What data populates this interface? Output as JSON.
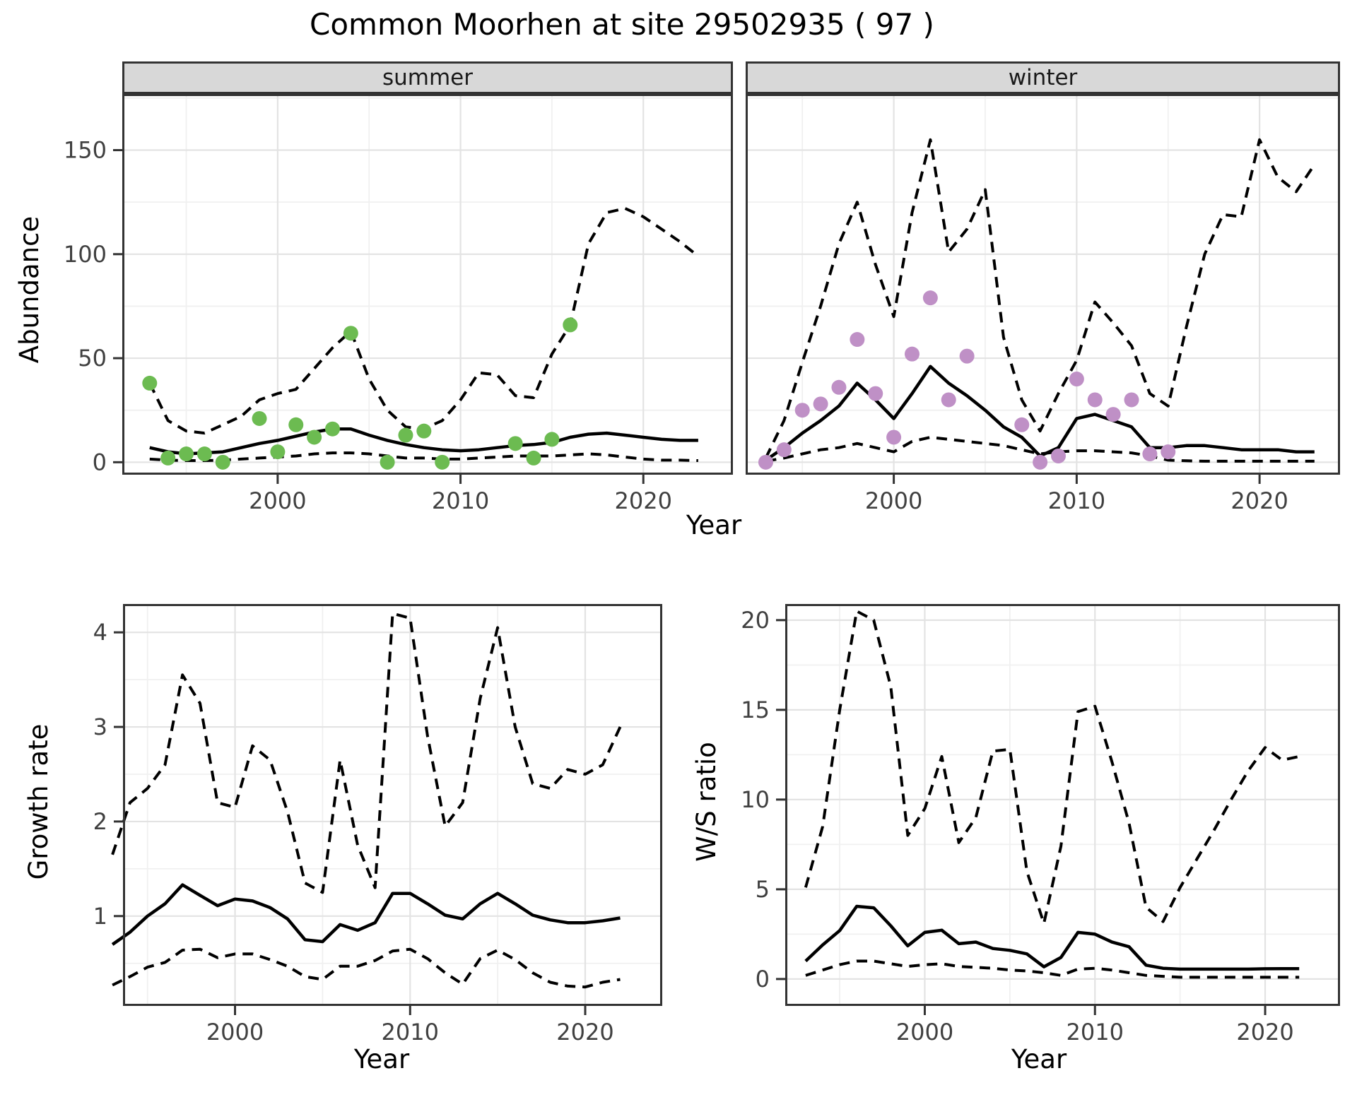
{
  "title": "Common Moorhen at site 29502935 ( 97 )",
  "axis_titles": {
    "abundance": "Abundance",
    "year_top": "Year",
    "year_growth": "Year",
    "year_ws": "Year",
    "growth_rate": "Growth rate",
    "ws_ratio": "W/S ratio"
  },
  "colors": {
    "summer_points": "#6cbb51",
    "winter_points": "#bf90c6",
    "line": "#000000",
    "grid_major": "#e3e3e3",
    "grid_minor": "#f0f0f0",
    "panel_border": "#333333",
    "strip_bg": "#d8d8d8",
    "tick_text": "#404040"
  },
  "chart_data": {
    "type": "line",
    "description": "Faceted population model plot: observed counts (points), model fit (solid line) and 95% CI (dashed lines)",
    "panels": [
      {
        "id": "abundance_summer",
        "facet_label": "summer",
        "x_range": [
          1991.5,
          2024.9
        ],
        "y_range": [
          -6,
          177
        ],
        "x_ticks": {
          "values": [
            2000,
            2010,
            2020
          ],
          "labels": [
            "2000",
            "2010",
            "2020"
          ],
          "minor": [
            1995,
            2005,
            2015
          ]
        },
        "y_ticks": {
          "values": [
            0,
            50,
            100,
            150
          ],
          "labels": [
            "0",
            "50",
            "100",
            "150"
          ],
          "minor": [
            25,
            75,
            125,
            175
          ]
        },
        "y_ticks_visible": true,
        "series": [
          {
            "name": "upper_95ci",
            "style": "dashed",
            "year_start": 1993,
            "values": [
              38,
              20,
              15,
              14,
              18,
              22,
              30,
              33,
              35,
              45,
              55,
              63,
              40,
              25,
              17,
              16,
              20,
              30,
              43,
              42,
              32,
              31,
              52,
              66,
              105,
              120,
              122,
              118,
              112,
              106,
              99
            ]
          },
          {
            "name": "fit",
            "style": "solid",
            "year_start": 1993,
            "values": [
              7,
              5,
              4,
              4.5,
              5,
              7,
              9,
              10.5,
              12.5,
              14.5,
              16,
              16,
              13,
              10.5,
              8.5,
              7,
              6,
              5.5,
              6,
              7,
              8,
              8.5,
              9.5,
              12,
              13.5,
              14,
              13,
              12,
              11,
              10.5,
              10.5
            ]
          },
          {
            "name": "lower_95ci",
            "style": "dashed",
            "year_start": 1993,
            "values": [
              1.5,
              1,
              0.8,
              0.8,
              1,
              1.5,
              2,
              2.5,
              3,
              4,
              4.5,
              4.5,
              4,
              3,
              2,
              2,
              1.5,
              1.5,
              2,
              2.5,
              3,
              3,
              3,
              3.5,
              4,
              3.5,
              2.5,
              1.5,
              1,
              1,
              0.8
            ]
          }
        ],
        "points": {
          "name": "observed_counts_summer",
          "color_key": "summer_points",
          "years": [
            1993,
            1994,
            1995,
            1996,
            1997,
            1999,
            2000,
            2001,
            2002,
            2003,
            2004,
            2006,
            2007,
            2008,
            2009,
            2013,
            2014,
            2015,
            2016
          ],
          "values": [
            38,
            2,
            4,
            4,
            0,
            21,
            5,
            18,
            12,
            16,
            62,
            0,
            13,
            15,
            0,
            9,
            2,
            11,
            66
          ]
        }
      },
      {
        "id": "abundance_winter",
        "facet_label": "winter",
        "x_range": [
          1991.9,
          2024.4
        ],
        "y_range": [
          -6,
          177
        ],
        "x_ticks": {
          "values": [
            2000,
            2010,
            2020
          ],
          "labels": [
            "2000",
            "2010",
            "2020"
          ],
          "minor": [
            1995,
            2005,
            2015
          ]
        },
        "y_ticks": {
          "values": [
            0,
            50,
            100,
            150
          ],
          "labels": [
            "0",
            "50",
            "100",
            "150"
          ],
          "minor": [
            25,
            75,
            125,
            175
          ]
        },
        "y_ticks_visible": false,
        "series": [
          {
            "name": "upper_95ci",
            "style": "dashed",
            "year_start": 1993,
            "values": [
              2,
              20,
              48,
              75,
              105,
              125,
              95,
              70,
              120,
              155,
              101,
              112,
              131,
              60,
              30,
              15,
              33,
              49,
              77,
              67,
              56,
              33,
              27,
              65,
              100,
              119,
              118,
              155,
              137,
              130,
              143
            ]
          },
          {
            "name": "fit",
            "style": "solid",
            "year_start": 1993,
            "values": [
              1,
              7,
              14,
              20,
              27,
              38,
              30,
              21,
              33,
              46,
              38,
              32,
              25,
              17,
              12,
              3,
              7,
              21,
              23,
              20,
              17,
              7,
              7,
              8,
              8,
              7,
              6,
              6,
              6,
              5,
              5
            ]
          },
          {
            "name": "lower_95ci",
            "style": "dashed",
            "year_start": 1993,
            "values": [
              0.5,
              2,
              4,
              6,
              7,
              9,
              7,
              5,
              10,
              12,
              11,
              10,
              9,
              8,
              6,
              4,
              5,
              5.5,
              5.5,
              5,
              4.5,
              3,
              1,
              0.7,
              0.5,
              0.5,
              0.5,
              0.5,
              0.5,
              0.5,
              0.5
            ]
          }
        ],
        "points": {
          "name": "observed_counts_winter",
          "color_key": "winter_points",
          "years": [
            1993,
            1994,
            1995,
            1996,
            1997,
            1998,
            1999,
            2000,
            2001,
            2002,
            2003,
            2004,
            2007,
            2008,
            2009,
            2010,
            2011,
            2012,
            2013,
            2014,
            2015
          ],
          "values": [
            0,
            6,
            25,
            28,
            36,
            59,
            33,
            12,
            52,
            79,
            30,
            51,
            18,
            0,
            3,
            40,
            30,
            23,
            30,
            4,
            5
          ]
        }
      },
      {
        "id": "growth_rate",
        "facet_label": null,
        "x_range": [
          1993.6,
          2024.4
        ],
        "y_range": [
          0.05,
          4.3
        ],
        "x_ticks": {
          "values": [
            2000,
            2010,
            2020
          ],
          "labels": [
            "2000",
            "2010",
            "2020"
          ],
          "minor": [
            1995,
            2005,
            2015
          ]
        },
        "y_ticks": {
          "values": [
            1,
            2,
            3,
            4
          ],
          "labels": [
            "1",
            "2",
            "3",
            "4"
          ],
          "minor": [
            0.5,
            1.5,
            2.5,
            3.5
          ]
        },
        "y_ticks_visible": true,
        "series": [
          {
            "name": "upper_95ci",
            "style": "dashed",
            "year_start": 1993,
            "values": [
              1.65,
              2.2,
              2.35,
              2.6,
              3.55,
              3.25,
              2.2,
              2.15,
              2.8,
              2.65,
              2.1,
              1.35,
              1.25,
              2.65,
              1.75,
              1.3,
              4.2,
              4.15,
              2.9,
              1.95,
              2.2,
              3.3,
              4.05,
              3.0,
              2.4,
              2.35,
              2.55,
              2.5,
              2.6,
              3.0
            ]
          },
          {
            "name": "fit",
            "style": "solid",
            "year_start": 1993,
            "values": [
              0.7,
              0.83,
              1.0,
              1.13,
              1.33,
              1.22,
              1.11,
              1.18,
              1.16,
              1.09,
              0.97,
              0.75,
              0.73,
              0.91,
              0.85,
              0.93,
              1.24,
              1.24,
              1.13,
              1.01,
              0.97,
              1.13,
              1.24,
              1.13,
              1.01,
              0.96,
              0.93,
              0.93,
              0.95,
              0.98
            ]
          },
          {
            "name": "lower_95ci",
            "style": "dashed",
            "year_start": 1993,
            "values": [
              0.27,
              0.36,
              0.46,
              0.51,
              0.64,
              0.65,
              0.56,
              0.6,
              0.6,
              0.54,
              0.47,
              0.36,
              0.33,
              0.47,
              0.47,
              0.53,
              0.63,
              0.65,
              0.55,
              0.4,
              0.28,
              0.55,
              0.64,
              0.54,
              0.4,
              0.3,
              0.26,
              0.25,
              0.3,
              0.33
            ]
          }
        ],
        "points": null
      },
      {
        "id": "ws_ratio",
        "facet_label": null,
        "x_range": [
          1991.8,
          2024.4
        ],
        "y_range": [
          -1.5,
          20.9
        ],
        "x_ticks": {
          "values": [
            2000,
            2010,
            2020
          ],
          "labels": [
            "2000",
            "2010",
            "2020"
          ],
          "minor": [
            1995,
            2005,
            2015
          ]
        },
        "y_ticks": {
          "values": [
            0,
            5,
            10,
            15,
            20
          ],
          "labels": [
            "0",
            "5",
            "10",
            "15",
            "20"
          ],
          "minor": [
            2.5,
            7.5,
            12.5,
            17.5
          ]
        },
        "y_ticks_visible": true,
        "series": [
          {
            "name": "upper_95ci",
            "style": "dashed",
            "year_start": 1993,
            "values": [
              5.1,
              8.5,
              15,
              20.5,
              20.0,
              16.3,
              8.0,
              9.5,
              12.4,
              7.6,
              9.0,
              12.7,
              12.8,
              6.0,
              3.1,
              7.4,
              14.9,
              15.2,
              12.1,
              8.7,
              4.0,
              3.2,
              5.1,
              6.7,
              8.3,
              10.0,
              11.6,
              12.9,
              12.2,
              12.4
            ]
          },
          {
            "name": "fit",
            "style": "solid",
            "year_start": 1993,
            "values": [
              1.0,
              1.9,
              2.7,
              4.05,
              3.97,
              2.97,
              1.85,
              2.6,
              2.72,
              1.97,
              2.06,
              1.7,
              1.6,
              1.4,
              0.68,
              1.2,
              2.6,
              2.5,
              2.06,
              1.8,
              0.77,
              0.6,
              0.55,
              0.55,
              0.55,
              0.55,
              0.55,
              0.57,
              0.58,
              0.58
            ]
          },
          {
            "name": "lower_95ci",
            "style": "dashed",
            "year_start": 1993,
            "values": [
              0.2,
              0.5,
              0.8,
              1.0,
              1.0,
              0.85,
              0.7,
              0.8,
              0.85,
              0.7,
              0.65,
              0.6,
              0.5,
              0.45,
              0.35,
              0.2,
              0.55,
              0.6,
              0.5,
              0.35,
              0.2,
              0.15,
              0.1,
              0.1,
              0.1,
              0.1,
              0.1,
              0.1,
              0.1,
              0.1
            ]
          }
        ],
        "points": null
      }
    ]
  }
}
